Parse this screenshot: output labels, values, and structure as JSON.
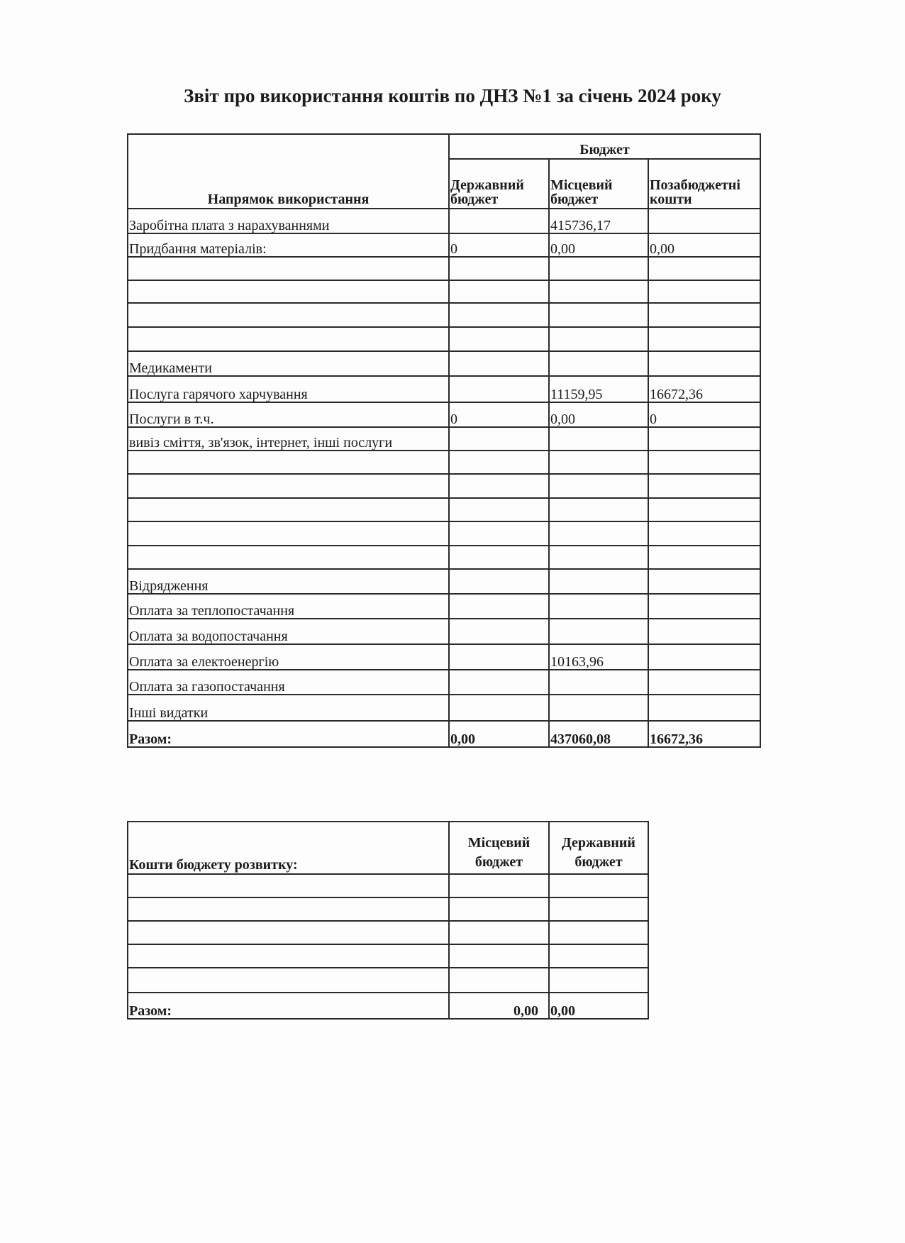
{
  "title": "Звіт про використання коштів по ДНЗ №1 за січень 2024 року",
  "main_table": {
    "direction_header": "Напрямок використання",
    "budget_header": "Бюджет",
    "columns": [
      "Державний бюджет",
      "Місцевий бюджет",
      "Позабюджетні кошти"
    ],
    "rows": [
      [
        "Заробітна плата з нарахуваннями",
        "",
        "415736,17",
        ""
      ],
      [
        "Придбання матеріалів:",
        "0",
        "0,00",
        "0,00"
      ],
      [
        "",
        "",
        "",
        ""
      ],
      [
        "",
        "",
        "",
        ""
      ],
      [
        "",
        "",
        "",
        ""
      ],
      [
        "",
        "",
        "",
        ""
      ],
      [
        "Медикаменти",
        "",
        "",
        ""
      ],
      [
        "Послуга гарячого харчування",
        "",
        "11159,95",
        "16672,36"
      ],
      [
        "Послуги в т.ч.",
        "0",
        "0,00",
        "0"
      ],
      [
        "вивіз сміття, зв'язок, інтернет, інші послуги",
        "",
        "",
        ""
      ],
      [
        "",
        "",
        "",
        ""
      ],
      [
        "",
        "",
        "",
        ""
      ],
      [
        "",
        "",
        "",
        ""
      ],
      [
        "",
        "",
        "",
        ""
      ],
      [
        "",
        "",
        "",
        ""
      ],
      [
        "Відрядження",
        "",
        "",
        ""
      ],
      [
        "Оплата за теплопостачання",
        "",
        "",
        ""
      ],
      [
        "Оплата за водопостачання",
        "",
        "",
        ""
      ],
      [
        "Оплата за електоенергію",
        "",
        "10163,96",
        ""
      ],
      [
        "Оплата за газопостачання",
        "",
        "",
        ""
      ],
      [
        "Інші видатки",
        "",
        "",
        ""
      ]
    ],
    "total": [
      "Разом:",
      "0,00",
      "437060,08",
      "16672,36"
    ]
  },
  "dev_table": {
    "header": "Кошти бюджету розвитку:",
    "columns": [
      "Місцевий бюджет",
      "Державний бюджет"
    ],
    "rows": [
      [
        "",
        "",
        ""
      ],
      [
        "",
        "",
        ""
      ],
      [
        "",
        "",
        ""
      ],
      [
        "",
        "",
        ""
      ],
      [
        "",
        "",
        ""
      ]
    ],
    "total": [
      "Разом:",
      "0,00",
      "0,00"
    ]
  }
}
